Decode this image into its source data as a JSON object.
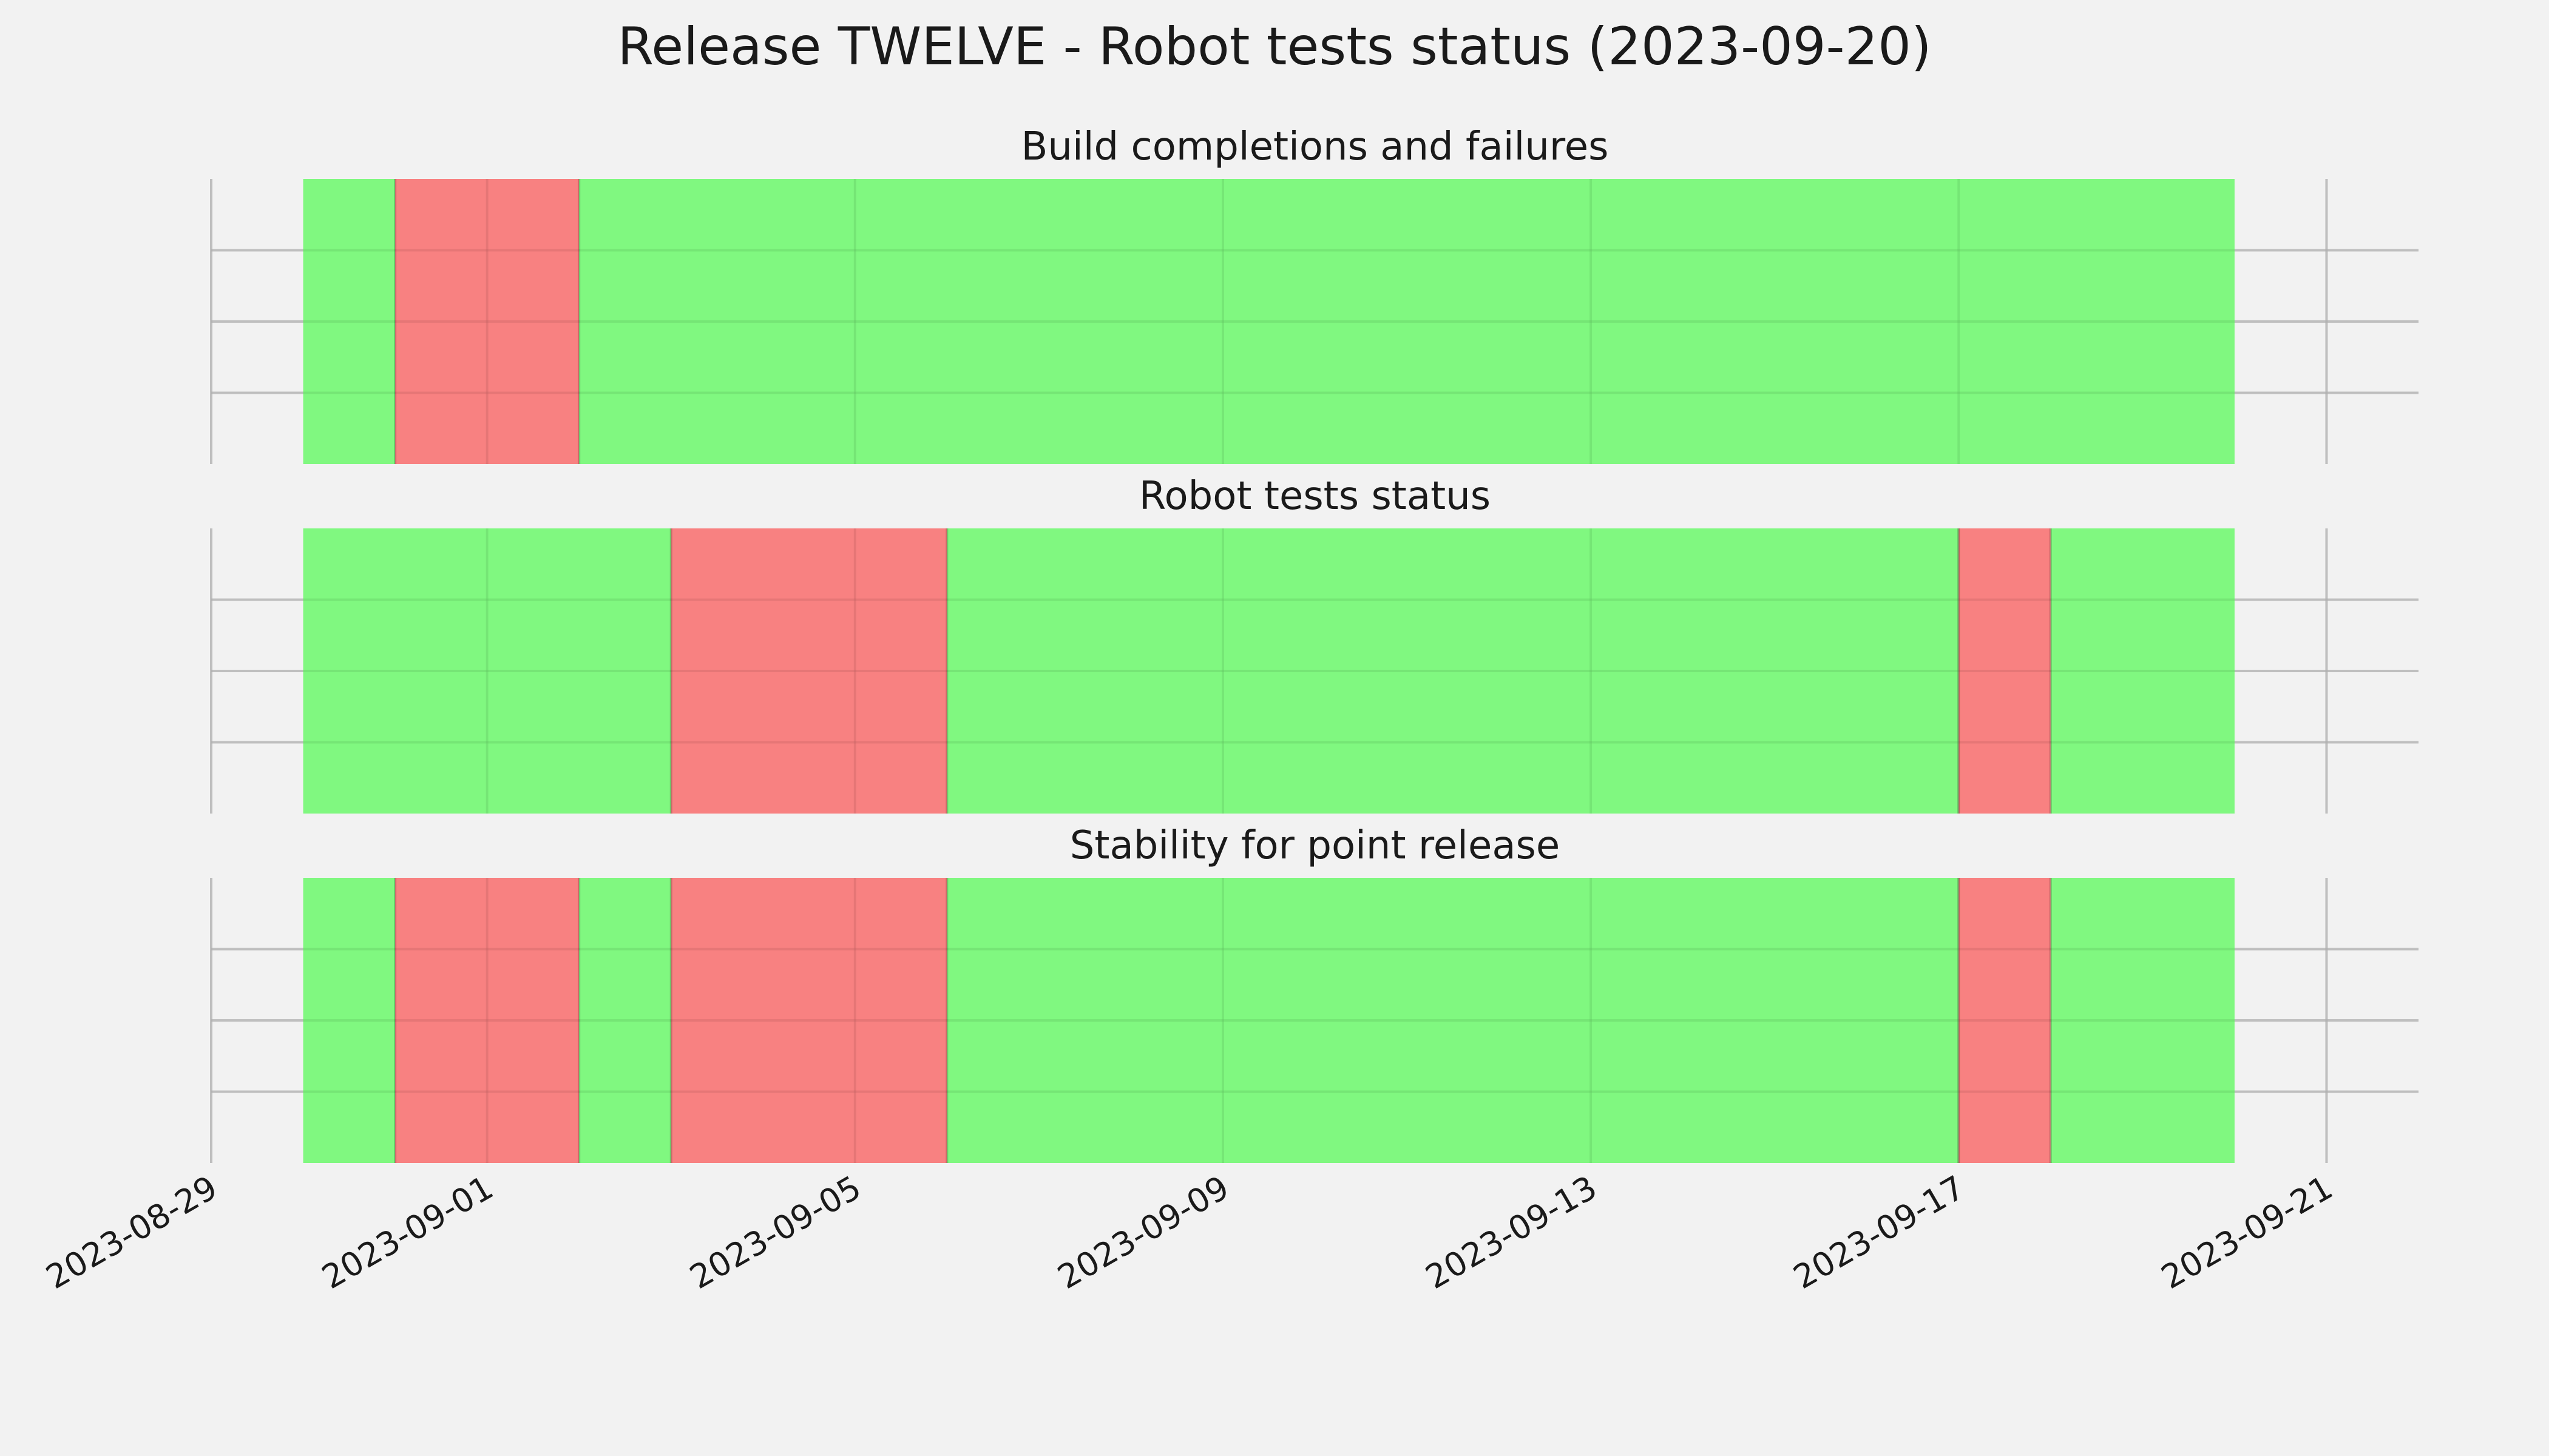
{
  "title": "Release TWELVE - Robot tests status (2023-09-20)",
  "colors": {
    "background": "#f2f2f2",
    "grid": "#cbcbcb",
    "pass": "#76f876",
    "fail": "#f87777"
  },
  "chart_data": [
    {
      "type": "timeline",
      "title": "Build completions and failures",
      "x_range": [
        "2023-08-29",
        "2023-09-22"
      ],
      "x_ticks": [
        "2023-08-29",
        "2023-09-01",
        "2023-09-05",
        "2023-09-09",
        "2023-09-13",
        "2023-09-17",
        "2023-09-21"
      ],
      "segments": [
        {
          "start": "2023-08-30",
          "end": "2023-08-31",
          "status": "pass"
        },
        {
          "start": "2023-08-31",
          "end": "2023-09-02",
          "status": "fail"
        },
        {
          "start": "2023-09-02",
          "end": "2023-09-20",
          "status": "pass"
        }
      ]
    },
    {
      "type": "timeline",
      "title": "Robot tests status",
      "x_range": [
        "2023-08-29",
        "2023-09-22"
      ],
      "x_ticks": [
        "2023-08-29",
        "2023-09-01",
        "2023-09-05",
        "2023-09-09",
        "2023-09-13",
        "2023-09-17",
        "2023-09-21"
      ],
      "segments": [
        {
          "start": "2023-08-30",
          "end": "2023-09-03",
          "status": "pass"
        },
        {
          "start": "2023-09-03",
          "end": "2023-09-06",
          "status": "fail"
        },
        {
          "start": "2023-09-06",
          "end": "2023-09-17",
          "status": "pass"
        },
        {
          "start": "2023-09-17",
          "end": "2023-09-18",
          "status": "fail"
        },
        {
          "start": "2023-09-18",
          "end": "2023-09-20",
          "status": "pass"
        }
      ]
    },
    {
      "type": "timeline",
      "title": "Stability for point release",
      "x_range": [
        "2023-08-29",
        "2023-09-22"
      ],
      "x_ticks": [
        "2023-08-29",
        "2023-09-01",
        "2023-09-05",
        "2023-09-09",
        "2023-09-13",
        "2023-09-17",
        "2023-09-21"
      ],
      "segments": [
        {
          "start": "2023-08-30",
          "end": "2023-08-31",
          "status": "pass"
        },
        {
          "start": "2023-08-31",
          "end": "2023-09-02",
          "status": "fail"
        },
        {
          "start": "2023-09-02",
          "end": "2023-09-03",
          "status": "pass"
        },
        {
          "start": "2023-09-03",
          "end": "2023-09-06",
          "status": "fail"
        },
        {
          "start": "2023-09-06",
          "end": "2023-09-17",
          "status": "pass"
        },
        {
          "start": "2023-09-17",
          "end": "2023-09-18",
          "status": "fail"
        },
        {
          "start": "2023-09-18",
          "end": "2023-09-20",
          "status": "pass"
        }
      ]
    }
  ]
}
